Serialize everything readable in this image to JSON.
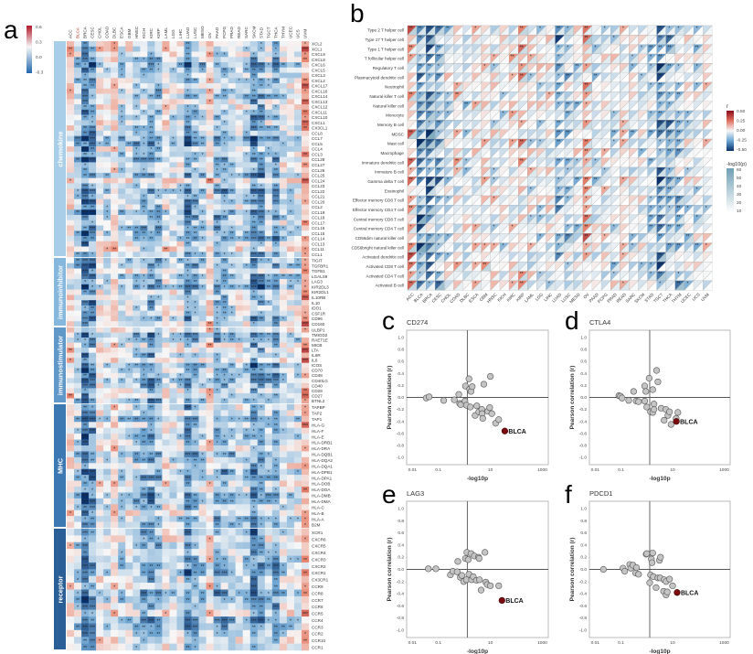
{
  "panels": {
    "a": "a",
    "b": "b",
    "c": "c",
    "d": "d",
    "e": "e",
    "f": "f"
  },
  "colors": {
    "positive": "#b2182b",
    "negative": "#2166ac",
    "highlight": "#7a0c10",
    "point": "#c4c4c4",
    "p_scale": "#6f9fb5"
  },
  "chart_data": [
    {
      "panel": "a",
      "type": "heatmap",
      "columns": [
        "ACC",
        "BLCA",
        "BRCA",
        "CESC",
        "CHOL",
        "COAD",
        "DLBC",
        "ESCA",
        "GBM",
        "HNSC",
        "KICH",
        "KIRC",
        "KIRP",
        "LAML",
        "LGG",
        "LIHC",
        "LUAD",
        "LUSC",
        "MESO",
        "OV",
        "PAAD",
        "PCPG",
        "PRAD",
        "READ",
        "SARC",
        "SKCM",
        "STAD",
        "TGCT",
        "THCA",
        "THYM",
        "UCEC",
        "UCS",
        "UVM"
      ],
      "highlighted_column": "BLCA",
      "row_groups": [
        {
          "name": "chemokine",
          "rows": [
            "XCL2",
            "XCL1",
            "CXCL9",
            "CXCL8",
            "CXCL6",
            "CXCL5",
            "CXCL3",
            "CXCL2",
            "CXCL17",
            "CXCL16",
            "CXCL14",
            "CXCL13",
            "CXCL12",
            "CXCL11",
            "CXCL10",
            "CXCL1",
            "CX3CL1",
            "CCL8",
            "CCL7",
            "CCL5",
            "CCL4",
            "CCL3",
            "CCL28",
            "CCL27",
            "CCL26",
            "CCL25",
            "CCL24",
            "CCL23",
            "CCL22",
            "CCL21",
            "CCL20",
            "CCL2",
            "CCL19",
            "CCL18",
            "CCL17",
            "CCL16",
            "CCL15",
            "CCL14",
            "CCL13",
            "CCL11",
            "CCL1"
          ]
        },
        {
          "name": "immunoinhibitor",
          "rows": [
            "TIGIT",
            "TGFBR1",
            "TGFB1",
            "LGALS9",
            "LAG3",
            "KIR2DL3",
            "KIR2DL1",
            "IL10RB",
            "IL10",
            "IDO1",
            "CSF1R",
            "CD96",
            "CD160"
          ]
        },
        {
          "name": "immunostimulator",
          "rows": [
            "ULBP1",
            "TMIGD2",
            "RAET1E",
            "MICB",
            "LTA",
            "IL6R",
            "IL6",
            "ICOS",
            "CD70",
            "CD48",
            "CD40LG",
            "CD40",
            "CD28",
            "CD27",
            "BTNL2"
          ]
        },
        {
          "name": "MHC",
          "rows": [
            "TAPBP",
            "TAP2",
            "TAP1",
            "HLA-G",
            "HLA-F",
            "HLA-E",
            "HLA-DRB1",
            "HLA-DRA",
            "HLA-DQB1",
            "HLA-DQA2",
            "HLA-DQA1",
            "HLA-DPB1",
            "HLA-DPA1",
            "HLA-DOB",
            "HLA-DOA",
            "HLA-DMB",
            "HLA-DMA",
            "HLA-C",
            "HLA-B",
            "HLA-A",
            "B2M"
          ]
        },
        {
          "name": "receptor",
          "rows": [
            "XCR1",
            "CXCR6",
            "CXCR5",
            "CXCR4",
            "CXCR3",
            "CXCR2",
            "CXCR1",
            "CX3CR1",
            "CCR9",
            "CCR8",
            "CCR7",
            "CCR6",
            "CCR5",
            "CCR4",
            "CCR3",
            "CCR2",
            "CCR10",
            "CCR1"
          ]
        }
      ],
      "colorbar": {
        "ticks": [
          "0.6",
          "0.3",
          "0.0",
          "-0.3"
        ],
        "range": [
          -0.45,
          0.6
        ]
      }
    },
    {
      "panel": "b",
      "type": "heatmap",
      "rows": [
        "Type 2 T helper cell",
        "Type 17 T helper cell",
        "Type 1 T helper cell",
        "T follicular helper cell",
        "Regulatory T cell",
        "Plasmacytoid dendritic cell",
        "Neutrophil",
        "Natural killer T cell",
        "Natural killer cell",
        "Monocyte",
        "Memory B cell",
        "MDSC",
        "Mast cell",
        "Macrophage",
        "Immature dendritic cell",
        "Immature  B cell",
        "Gamma delta T cell",
        "Eosinophil",
        "Effector memory CD8 T cell",
        "Effector memory CD4 T cell",
        "Central memory CD8 T cell",
        "Central memory CD4 T cell",
        "CD56dim natural killer cell",
        "CD56bright natural killer cell",
        "Activated dendritic cell",
        "Activated CD8 T cell",
        "Activated CD4 T cell",
        "Activated B cell"
      ],
      "columns": [
        "ACC",
        "BLCA",
        "BRCA",
        "CESC",
        "CHOL",
        "COAD",
        "DLBC",
        "ESCA",
        "GBM",
        "HNSC",
        "KICH",
        "KIRC",
        "KIRP",
        "LAML",
        "LGG",
        "LIHC",
        "LUAD",
        "LUSC",
        "MESO",
        "OV",
        "PAAD",
        "PCPG",
        "PRAD",
        "READ",
        "SARC",
        "SKCM",
        "STAD",
        "TGCT",
        "THCA",
        "THYM",
        "UCEC",
        "UCS",
        "UVM"
      ],
      "legend_r": {
        "title": "r",
        "ticks": [
          "0.50",
          "0.25",
          "0.00",
          "-0.25",
          "-0.50"
        ]
      },
      "legend_p": {
        "title": "-log10(p)",
        "ticks": [
          "60",
          "50",
          "40",
          "30",
          "20",
          "10"
        ]
      }
    },
    {
      "panel": "c",
      "type": "scatter",
      "title": "CD274",
      "xlabel": "-log10p",
      "ylabel": "Pearson correlation (r)",
      "xscale": "log",
      "xlim": [
        0.006,
        1700
      ],
      "ylim": [
        -1.12,
        1.12
      ],
      "xticks": [
        "0.01",
        "0.1",
        "10",
        "1000"
      ],
      "yticks": [
        "1.0",
        "0.8",
        "0.6",
        "0.4",
        "0.2",
        "0.0",
        "-0.2",
        "-0.4",
        "-0.6",
        "-0.8",
        "-1.0"
      ],
      "reference_lines": {
        "x": 1.3,
        "y": 0
      },
      "points": [
        [
          0.034,
          -0.01
        ],
        [
          0.044,
          0.01
        ],
        [
          0.16,
          -0.05
        ],
        [
          0.41,
          -0.04
        ],
        [
          0.61,
          0.05
        ],
        [
          0.66,
          -0.1
        ],
        [
          0.72,
          -0.12
        ],
        [
          1.05,
          -0.06
        ],
        [
          1.1,
          0.19
        ],
        [
          1.2,
          -0.13
        ],
        [
          1.5,
          0.31
        ],
        [
          1.6,
          0.14
        ],
        [
          1.7,
          -0.16
        ],
        [
          1.8,
          0.1
        ],
        [
          2.0,
          0.18
        ],
        [
          2.6,
          -0.3
        ],
        [
          3.0,
          -0.14
        ],
        [
          3.6,
          -0.24
        ],
        [
          4.7,
          -0.2
        ],
        [
          4.8,
          -0.27
        ],
        [
          5.1,
          -0.35
        ],
        [
          5.6,
          0.22
        ],
        [
          8.0,
          -0.23
        ],
        [
          9.4,
          -0.17
        ],
        [
          10,
          0.35
        ],
        [
          11.4,
          -0.27
        ],
        [
          16,
          -0.43
        ],
        [
          21,
          -0.37
        ]
      ],
      "highlight": {
        "label": "BLCA",
        "x": 36,
        "y": -0.56
      }
    },
    {
      "panel": "d",
      "type": "scatter",
      "title": "CTLA4",
      "xlabel": "-log10p",
      "ylabel": "Pearson correlation (r)",
      "xscale": "log",
      "xlim": [
        0.006,
        1700
      ],
      "ylim": [
        -1.12,
        1.12
      ],
      "xticks": [
        "0.01",
        "0.1",
        "10",
        "1000"
      ],
      "yticks": [
        "1.0",
        "0.8",
        "0.6",
        "0.4",
        "0.2",
        "0.0",
        "-0.2",
        "-0.4",
        "-0.6",
        "-0.8",
        "-1.0"
      ],
      "reference_lines": {
        "x": 1.3,
        "y": 0
      },
      "points": [
        [
          0.083,
          0.03
        ],
        [
          0.095,
          0.02
        ],
        [
          0.11,
          -0.01
        ],
        [
          0.2,
          -0.05
        ],
        [
          0.31,
          0.1
        ],
        [
          0.39,
          -0.06
        ],
        [
          0.48,
          -0.07
        ],
        [
          0.83,
          0.19
        ],
        [
          0.83,
          -0.06
        ],
        [
          0.92,
          0.1
        ],
        [
          1.0,
          -0.16
        ],
        [
          1.24,
          0.32
        ],
        [
          1.4,
          -0.24
        ],
        [
          1.7,
          0.13
        ],
        [
          1.7,
          -0.25
        ],
        [
          1.9,
          -0.11
        ],
        [
          1.9,
          -0.2
        ],
        [
          2.4,
          0.45
        ],
        [
          2.7,
          0.26
        ],
        [
          3.6,
          -0.18
        ],
        [
          4.7,
          -0.38
        ],
        [
          5.5,
          -0.2
        ],
        [
          6.6,
          -0.3
        ],
        [
          7.6,
          -0.24
        ],
        [
          8.7,
          -0.45
        ],
        [
          13.7,
          -0.35
        ],
        [
          16,
          -0.25
        ]
      ],
      "highlight": {
        "label": "BLCA",
        "x": 14,
        "y": -0.4
      }
    },
    {
      "panel": "e",
      "type": "scatter",
      "title": "LAG3",
      "xlabel": "-log10p",
      "ylabel": "Pearson correlation (r)",
      "xscale": "log",
      "xlim": [
        0.006,
        1700
      ],
      "ylim": [
        -1.12,
        1.12
      ],
      "xticks": [
        "0.01",
        "0.1",
        "10",
        "1000"
      ],
      "yticks": [
        "1.0",
        "0.8",
        "0.6",
        "0.4",
        "0.2",
        "0.0",
        "-0.2",
        "-0.4",
        "-0.6",
        "-0.8",
        "-1.0"
      ],
      "reference_lines": {
        "x": 1.3,
        "y": 0
      },
      "points": [
        [
          0.041,
          0.01
        ],
        [
          0.08,
          0.01
        ],
        [
          0.29,
          -0.09
        ],
        [
          0.36,
          -0.03
        ],
        [
          0.53,
          -0.04
        ],
        [
          0.56,
          0.13
        ],
        [
          0.7,
          -0.13
        ],
        [
          0.8,
          -0.1
        ],
        [
          0.94,
          -0.2
        ],
        [
          1.1,
          0.18
        ],
        [
          1.2,
          -0.17
        ],
        [
          1.25,
          0.28
        ],
        [
          1.4,
          0.16
        ],
        [
          1.5,
          -0.08
        ],
        [
          1.8,
          0.26
        ],
        [
          1.9,
          -0.17
        ],
        [
          2.2,
          -0.12
        ],
        [
          2.4,
          0.22
        ],
        [
          2.9,
          -0.18
        ],
        [
          3.5,
          0.2
        ],
        [
          3.7,
          0.18
        ],
        [
          3.8,
          -0.17
        ],
        [
          4.4,
          -0.34
        ],
        [
          6.2,
          0.28
        ],
        [
          6.7,
          -0.21
        ],
        [
          7.6,
          -0.25
        ],
        [
          10,
          -0.27
        ],
        [
          21,
          -0.27
        ]
      ],
      "highlight": {
        "label": "BLCA",
        "x": 28,
        "y": -0.51
      }
    },
    {
      "panel": "f",
      "type": "scatter",
      "title": "PDCD1",
      "xlabel": "-log10p",
      "ylabel": "Pearson correlation (r)",
      "xscale": "log",
      "xlim": [
        0.006,
        1700
      ],
      "ylim": [
        -1.12,
        1.12
      ],
      "xticks": [
        "0.01",
        "0.1",
        "10",
        "1000"
      ],
      "yticks": [
        "1.0",
        "0.8",
        "0.6",
        "0.4",
        "0.2",
        "0.0",
        "-0.2",
        "-0.4",
        "-0.6",
        "-0.8",
        "-1.0"
      ],
      "reference_lines": {
        "x": 1.3,
        "y": 0
      },
      "points": [
        [
          0.021,
          0.0
        ],
        [
          0.12,
          0.02
        ],
        [
          0.14,
          -0.03
        ],
        [
          0.22,
          0.08
        ],
        [
          0.24,
          0.02
        ],
        [
          0.29,
          0.07
        ],
        [
          0.37,
          -0.06
        ],
        [
          0.4,
          0.03
        ],
        [
          0.48,
          -0.08
        ],
        [
          0.95,
          0.25
        ],
        [
          1.0,
          0.26
        ],
        [
          1.3,
          -0.22
        ],
        [
          1.4,
          -0.09
        ],
        [
          1.5,
          0.17
        ],
        [
          1.6,
          0.11
        ],
        [
          1.7,
          0.27
        ],
        [
          1.8,
          -0.12
        ],
        [
          2.3,
          -0.3
        ],
        [
          2.7,
          -0.14
        ],
        [
          3.1,
          0.15
        ],
        [
          3.3,
          -0.14
        ],
        [
          3.4,
          0.2
        ],
        [
          4.5,
          -0.36
        ],
        [
          4.7,
          -0.17
        ],
        [
          5.6,
          -0.42
        ],
        [
          6.2,
          -0.37
        ],
        [
          5.6,
          -0.2
        ],
        [
          7.6,
          -0.16
        ],
        [
          10,
          -0.27
        ]
      ],
      "highlight": {
        "label": "BLCA",
        "x": 15,
        "y": -0.38
      }
    }
  ]
}
